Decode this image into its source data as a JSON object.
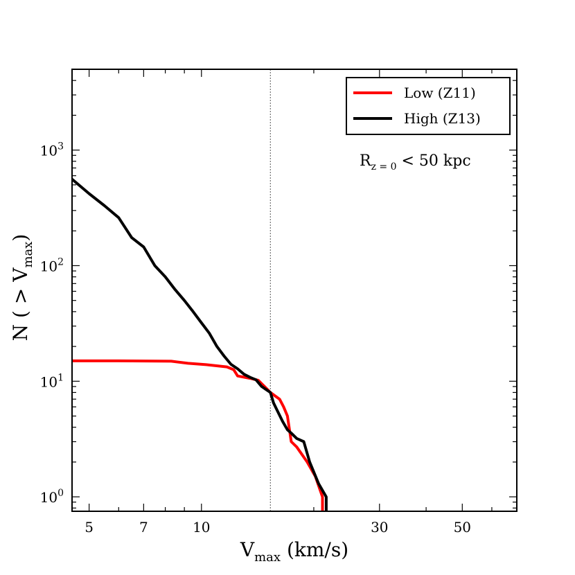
{
  "chart_data": {
    "type": "line",
    "xlabel": "V",
    "xlabel_sub": "max",
    "xlabel_unit": " (km/s)",
    "ylabel": "N ( > V",
    "ylabel_sub": "max",
    "ylabel_end": ")",
    "xscale": "log",
    "yscale": "log",
    "xlim": [
      4.5,
      70
    ],
    "ylim": [
      0.75,
      5000
    ],
    "x_ticks": [
      {
        "value": 5,
        "label": "5"
      },
      {
        "value": 7,
        "label": "7"
      },
      {
        "value": 10,
        "label": "10"
      },
      {
        "value": 30,
        "label": "30"
      },
      {
        "value": 50,
        "label": "50"
      }
    ],
    "y_ticks": [
      {
        "value": 1,
        "base": "10",
        "exp": "0"
      },
      {
        "value": 10,
        "base": "10",
        "exp": "1"
      },
      {
        "value": 100,
        "base": "10",
        "exp": "2"
      },
      {
        "value": 1000,
        "base": "10",
        "exp": "3"
      }
    ],
    "vline_x": 15.3,
    "annotation": {
      "main": "R",
      "sub": "z = 0",
      "rest": " < 50 kpc"
    },
    "legend_position": "top-right",
    "series": [
      {
        "name": "Low (Z11)",
        "color": "#ff0000",
        "points": [
          [
            4.5,
            15
          ],
          [
            6.0,
            15
          ],
          [
            8.3,
            14.9
          ],
          [
            9.2,
            14.3
          ],
          [
            10.3,
            13.9
          ],
          [
            11.7,
            13.3
          ],
          [
            12.2,
            12.6
          ],
          [
            12.5,
            11.1
          ],
          [
            13.5,
            10.6
          ],
          [
            14.2,
            10.2
          ],
          [
            15.3,
            8.0
          ],
          [
            16.2,
            7.0
          ],
          [
            16.6,
            6.0
          ],
          [
            17.0,
            5.0
          ],
          [
            17.4,
            3.0
          ],
          [
            18.0,
            2.7
          ],
          [
            19.2,
            2.0
          ],
          [
            20.2,
            1.5
          ],
          [
            21.1,
            1.0
          ],
          [
            21.1,
            0.75
          ]
        ]
      },
      {
        "name": "High (Z13)",
        "color": "#000000",
        "points": [
          [
            4.5,
            560
          ],
          [
            5.0,
            420
          ],
          [
            5.5,
            330
          ],
          [
            6.0,
            260
          ],
          [
            6.5,
            175
          ],
          [
            7.0,
            145
          ],
          [
            7.5,
            100
          ],
          [
            8.0,
            80
          ],
          [
            8.5,
            62
          ],
          [
            9.0,
            50
          ],
          [
            9.5,
            40
          ],
          [
            10.0,
            32
          ],
          [
            10.5,
            26
          ],
          [
            11.0,
            20
          ],
          [
            11.5,
            16.5
          ],
          [
            12.0,
            14.0
          ],
          [
            12.5,
            12.8
          ],
          [
            13.0,
            11.5
          ],
          [
            13.5,
            10.8
          ],
          [
            14.0,
            10.3
          ],
          [
            14.5,
            9.0
          ],
          [
            15.3,
            8.0
          ],
          [
            15.6,
            6.5
          ],
          [
            16.0,
            5.5
          ],
          [
            16.5,
            4.5
          ],
          [
            17.0,
            3.8
          ],
          [
            17.5,
            3.5
          ],
          [
            18.0,
            3.2
          ],
          [
            18.8,
            3.0
          ],
          [
            19.5,
            2.0
          ],
          [
            20.6,
            1.3
          ],
          [
            21.6,
            1.0
          ],
          [
            21.6,
            0.75
          ]
        ]
      }
    ]
  }
}
